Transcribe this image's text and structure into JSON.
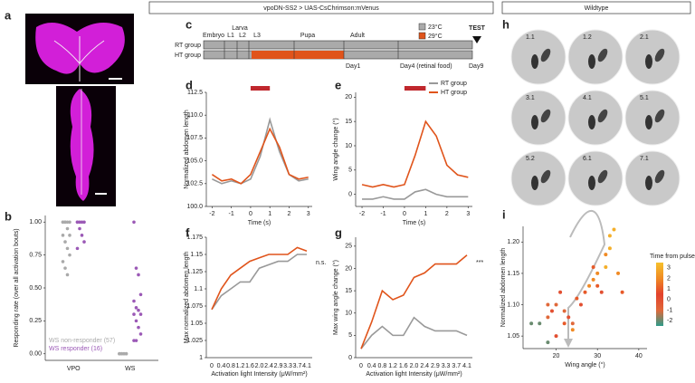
{
  "headers": {
    "left": "vpoDN-SS2 > UAS-CsChrimson:mVenus",
    "right": "Wildtype"
  },
  "panel_letters": [
    "a",
    "b",
    "c",
    "d",
    "e",
    "f",
    "g",
    "h",
    "i"
  ],
  "panel_c": {
    "stages": [
      "Embryo",
      "L1",
      "L2",
      "L3",
      "Pupa",
      "Adult"
    ],
    "larva": "Larva",
    "groups": [
      "RT group",
      "HT group"
    ],
    "days": [
      "Day1",
      "Day4 (retinal food)",
      "Day9"
    ],
    "test": "TEST",
    "temps": [
      {
        "label": "23°C",
        "color": "#aaaaaa"
      },
      {
        "label": "29°C",
        "color": "#e0541b"
      }
    ]
  },
  "panel_h": {
    "labels": [
      "1.1",
      "1.2",
      "2.1",
      "3.1",
      "4.1",
      "5.1",
      "5.2",
      "6.1",
      "7.1"
    ]
  },
  "chart_data": [
    {
      "type": "strip",
      "ylabel": "Responding rate (over all activation bouts)",
      "categories": [
        "VPO",
        "WS"
      ],
      "ylim": [
        -0.05,
        1.05
      ],
      "yticks": [
        {
          "value": 0,
          "label": "0.00"
        },
        {
          "value": 0.25,
          "label": "0.25"
        },
        {
          "value": 0.5,
          "label": "0.50"
        },
        {
          "value": 0.75,
          "label": "0.75"
        },
        {
          "value": 1,
          "label": "1.00"
        }
      ],
      "series": [
        {
          "name": "WS non-responder (57)",
          "color": "#aaaaaa",
          "values": [
            [
              1,
              1,
              1,
              1,
              1,
              1,
              0.95,
              0.9,
              0.9,
              0.85,
              0.8,
              0.75,
              0.7,
              0.65,
              0.6
            ],
            [
              0,
              0,
              0,
              0,
              0,
              0,
              0,
              0,
              0
            ]
          ]
        },
        {
          "name": "WS responder (16)",
          "color": "#9b59b6",
          "values": [
            [
              1,
              1,
              1,
              1,
              1,
              0.95,
              0.9,
              0.85,
              0.8
            ],
            [
              1,
              0.65,
              0.6,
              0.45,
              0.4,
              0.35,
              0.33,
              0.3,
              0.3,
              0.25,
              0.2,
              0.15,
              0.1,
              0.1
            ]
          ]
        }
      ]
    },
    {
      "type": "line",
      "xlabel": "Time (s)",
      "ylabel": "Normalized abdomen length",
      "x": [
        -2,
        -1.5,
        -1,
        -0.5,
        0,
        0.5,
        1,
        1.5,
        2,
        2.5,
        3
      ],
      "xlim": [
        -2.3,
        3.2
      ],
      "xticks": [
        -2,
        -1,
        0,
        1,
        2,
        3
      ],
      "ylim": [
        100,
        112.5
      ],
      "yticks": [
        {
          "value": 100,
          "label": "100.0"
        },
        {
          "value": 102.5,
          "label": "102.5"
        },
        {
          "value": 105,
          "label": "105.0"
        },
        {
          "value": 107.5,
          "label": "107.5"
        },
        {
          "value": 110,
          "label": "110.0"
        },
        {
          "value": 112.5,
          "label": "112.5"
        }
      ],
      "stimulus": [
        0,
        1
      ],
      "stimulus_color": "#c0272d",
      "series": [
        {
          "name": "RT group",
          "color": "#999999",
          "values": [
            103,
            102.5,
            102.8,
            102.5,
            103,
            105.5,
            109.5,
            106,
            103.5,
            102.8,
            103
          ]
        },
        {
          "name": "HT group",
          "color": "#e0541b",
          "values": [
            103.5,
            102.8,
            103,
            102.5,
            103.5,
            106,
            108.5,
            106.5,
            103.5,
            103,
            103.2
          ]
        }
      ]
    },
    {
      "type": "line",
      "xlabel": "Time (s)",
      "ylabel": "Wing angle change (°)",
      "x": [
        -2,
        -1.5,
        -1,
        -0.5,
        0,
        0.5,
        1,
        1.5,
        2,
        2.5,
        3
      ],
      "xlim": [
        -2.3,
        3.2
      ],
      "xticks": [
        -2,
        -1,
        0,
        1,
        2,
        3
      ],
      "ylim": [
        -2.5,
        21
      ],
      "yticks": [
        0,
        5,
        10,
        15,
        20
      ],
      "stimulus": [
        0,
        1
      ],
      "stimulus_color": "#c0272d",
      "legend": "upper right",
      "series": [
        {
          "name": "RT group",
          "color": "#999999",
          "values": [
            -1,
            -1,
            -0.5,
            -1,
            -1,
            0.5,
            1,
            0,
            -0.5,
            -0.5,
            -0.5
          ]
        },
        {
          "name": "HT group",
          "color": "#e0541b",
          "values": [
            2,
            1.5,
            2,
            1.5,
            2,
            8,
            15,
            12,
            6,
            4,
            3.5
          ]
        }
      ]
    },
    {
      "type": "line",
      "xlabel": "Activation light Intensity (μW/mm²)",
      "ylabel": "Max normalized abdomen length",
      "categories": [
        "0",
        "0.4",
        "0.8",
        "1.2",
        "1.6",
        "2.0",
        "2.4",
        "2.9",
        "3.3",
        "3.7",
        "4.1"
      ],
      "ylim": [
        1,
        1.175
      ],
      "yticks": [
        1,
        1.025,
        1.05,
        1.075,
        1.1,
        1.125,
        1.15,
        1.175
      ],
      "annotation": "n.s.",
      "series": [
        {
          "name": "RT group",
          "color": "#999999",
          "values": [
            1.07,
            1.09,
            1.1,
            1.11,
            1.11,
            1.13,
            1.135,
            1.14,
            1.14,
            1.15,
            1.15
          ]
        },
        {
          "name": "HT group",
          "color": "#e0541b",
          "values": [
            1.07,
            1.1,
            1.12,
            1.13,
            1.14,
            1.145,
            1.15,
            1.15,
            1.15,
            1.16,
            1.155
          ]
        }
      ]
    },
    {
      "type": "line",
      "xlabel": "Activation light Intensity (μW/mm²)",
      "ylabel": "Max wing angle change (°)",
      "categories": [
        "0",
        "0.4",
        "0.8",
        "1.2",
        "1.6",
        "2.0",
        "2.4",
        "2.9",
        "3.3",
        "3.7",
        "4.1"
      ],
      "ylim": [
        0,
        27
      ],
      "yticks": [
        0,
        5,
        10,
        15,
        20,
        25
      ],
      "annotation": "***",
      "series": [
        {
          "name": "RT group",
          "color": "#999999",
          "values": [
            2,
            5,
            7,
            5,
            5,
            9,
            7,
            6,
            6,
            6,
            5
          ]
        },
        {
          "name": "HT group",
          "color": "#e0541b",
          "values": [
            2,
            8,
            15,
            13,
            14,
            18,
            19,
            21,
            21,
            21,
            23
          ]
        }
      ]
    },
    {
      "type": "scatter",
      "xlabel": "Wing angle (°)",
      "ylabel": "Normalized abdomen length",
      "xlim": [
        12,
        42
      ],
      "xticks": [
        20,
        30,
        40
      ],
      "ylim": [
        1.03,
        1.225
      ],
      "yticks": [
        1.05,
        {
          "value": 1.1,
          "label": "1.10"
        },
        1.15,
        {
          "value": 1.2,
          "label": "1.20"
        }
      ],
      "x": [
        14,
        16,
        18,
        18,
        19,
        20,
        21,
        22,
        22,
        23,
        24,
        25,
        26,
        27,
        28,
        29,
        29,
        30,
        30,
        31,
        32,
        32,
        33,
        33,
        34,
        35,
        36,
        18,
        20,
        24
      ],
      "values": [
        1.07,
        1.07,
        1.08,
        1.1,
        1.09,
        1.1,
        1.12,
        1.09,
        1.07,
        1.08,
        1.07,
        1.11,
        1.1,
        1.12,
        1.13,
        1.14,
        1.16,
        1.15,
        1.13,
        1.12,
        1.16,
        1.18,
        1.19,
        1.21,
        1.22,
        1.15,
        1.12,
        1.04,
        1.05,
        1.06
      ],
      "color_values": [
        -2,
        -2,
        -1,
        -1,
        0,
        -1,
        0,
        -1,
        1,
        0,
        -1,
        1,
        0,
        1,
        2,
        2,
        1,
        2,
        1,
        0,
        3,
        2,
        3,
        3,
        3,
        2,
        1,
        -2,
        0,
        2
      ],
      "colorbar": {
        "label": "Time from pulse onset (s)",
        "ticks": [
          3,
          2,
          1,
          0,
          -1,
          -2
        ],
        "clim": [
          -2.5,
          3.5
        ],
        "colors": [
          "#2e9c8a",
          "#e0683a",
          "#e3422c",
          "#f08a24",
          "#f6c12c"
        ]
      }
    }
  ]
}
